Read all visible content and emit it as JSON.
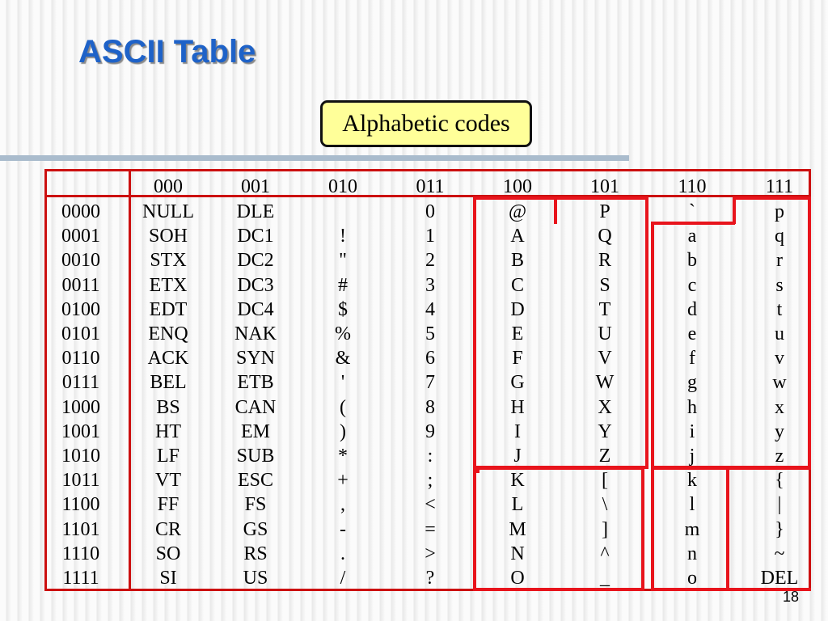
{
  "slide": {
    "title": "ASCII Table",
    "callout": "Alphabetic codes",
    "page_number": "18"
  },
  "table": {
    "column_headers": [
      "000",
      "001",
      "010",
      "011",
      "100",
      "101",
      "110",
      "111"
    ],
    "row_headers": [
      "0000",
      "0001",
      "0010",
      "0011",
      "0100",
      "0101",
      "0110",
      "0111",
      "1000",
      "1001",
      "1010",
      "1011",
      "1100",
      "1101",
      "1110",
      "1111"
    ],
    "columns": [
      [
        "NULL",
        "SOH",
        "STX",
        "ETX",
        "EDT",
        "ENQ",
        "ACK",
        "BEL",
        "BS",
        "HT",
        "LF",
        "VT",
        "FF",
        "CR",
        "SO",
        "SI"
      ],
      [
        "DLE",
        "DC1",
        "DC2",
        "DC3",
        "DC4",
        "NAK",
        "SYN",
        "ETB",
        "CAN",
        "EM",
        "SUB",
        "ESC",
        "FS",
        "GS",
        "RS",
        "US"
      ],
      [
        "",
        "!",
        "\"",
        "#",
        "$",
        "%",
        "&",
        "'",
        "(",
        ")",
        "*",
        "+",
        ",",
        "-",
        ".",
        "/"
      ],
      [
        "0",
        "1",
        "2",
        "3",
        "4",
        "5",
        "6",
        "7",
        "8",
        "9",
        ":",
        ";",
        "<",
        "=",
        ">",
        "?"
      ],
      [
        "@",
        "A",
        "B",
        "C",
        "D",
        "E",
        "F",
        "G",
        "H",
        "I",
        "J",
        "K",
        "L",
        "M",
        "N",
        "O"
      ],
      [
        "P",
        "Q",
        "R",
        "S",
        "T",
        "U",
        "V",
        "W",
        "X",
        "Y",
        "Z",
        "[",
        "\\",
        "]",
        "^",
        "_"
      ],
      [
        "`",
        "a",
        "b",
        "c",
        "d",
        "e",
        "f",
        "g",
        "h",
        "i",
        "j",
        "k",
        "l",
        "m",
        "n",
        "o"
      ],
      [
        "p",
        "q",
        "r",
        "s",
        "t",
        "u",
        "v",
        "w",
        "x",
        "y",
        "z",
        "{",
        "|",
        "}",
        "~",
        "DEL"
      ]
    ]
  },
  "highlight_color": "#e8141c"
}
